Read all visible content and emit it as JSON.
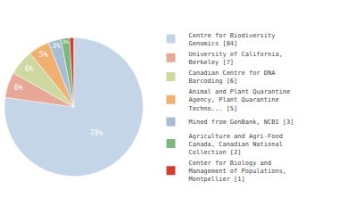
{
  "chart_data": {
    "type": "pie",
    "categories": [
      "Centre for Biodiversity\nGenomics [84]",
      "University of California,\nBerkeley [7]",
      "Canadian Centre for DNA\nBarcoding [6]",
      "Animal and Plant Quarantine\nAgency, Plant Quarantine\nTechno... [5]",
      "Mined from GenBank, NCBI [3]",
      "Agriculture and Agri-Food\nCanada, Canadian National\nCollection [2]",
      "Center for Biology and\nManagement of Populations,\nMontpellier [1]"
    ],
    "values": [
      78,
      6,
      6,
      5,
      3,
      2,
      1
    ],
    "value_labels": [
      "78%",
      "6%",
      "6%",
      "5%",
      "3%",
      "2%",
      null
    ],
    "colors": [
      "#c5d5e8",
      "#e8a898",
      "#cdd9a0",
      "#f0b070",
      "#a8bcd4",
      "#7db87d",
      "#d44030"
    ],
    "data_labels": true,
    "legend": "right"
  }
}
